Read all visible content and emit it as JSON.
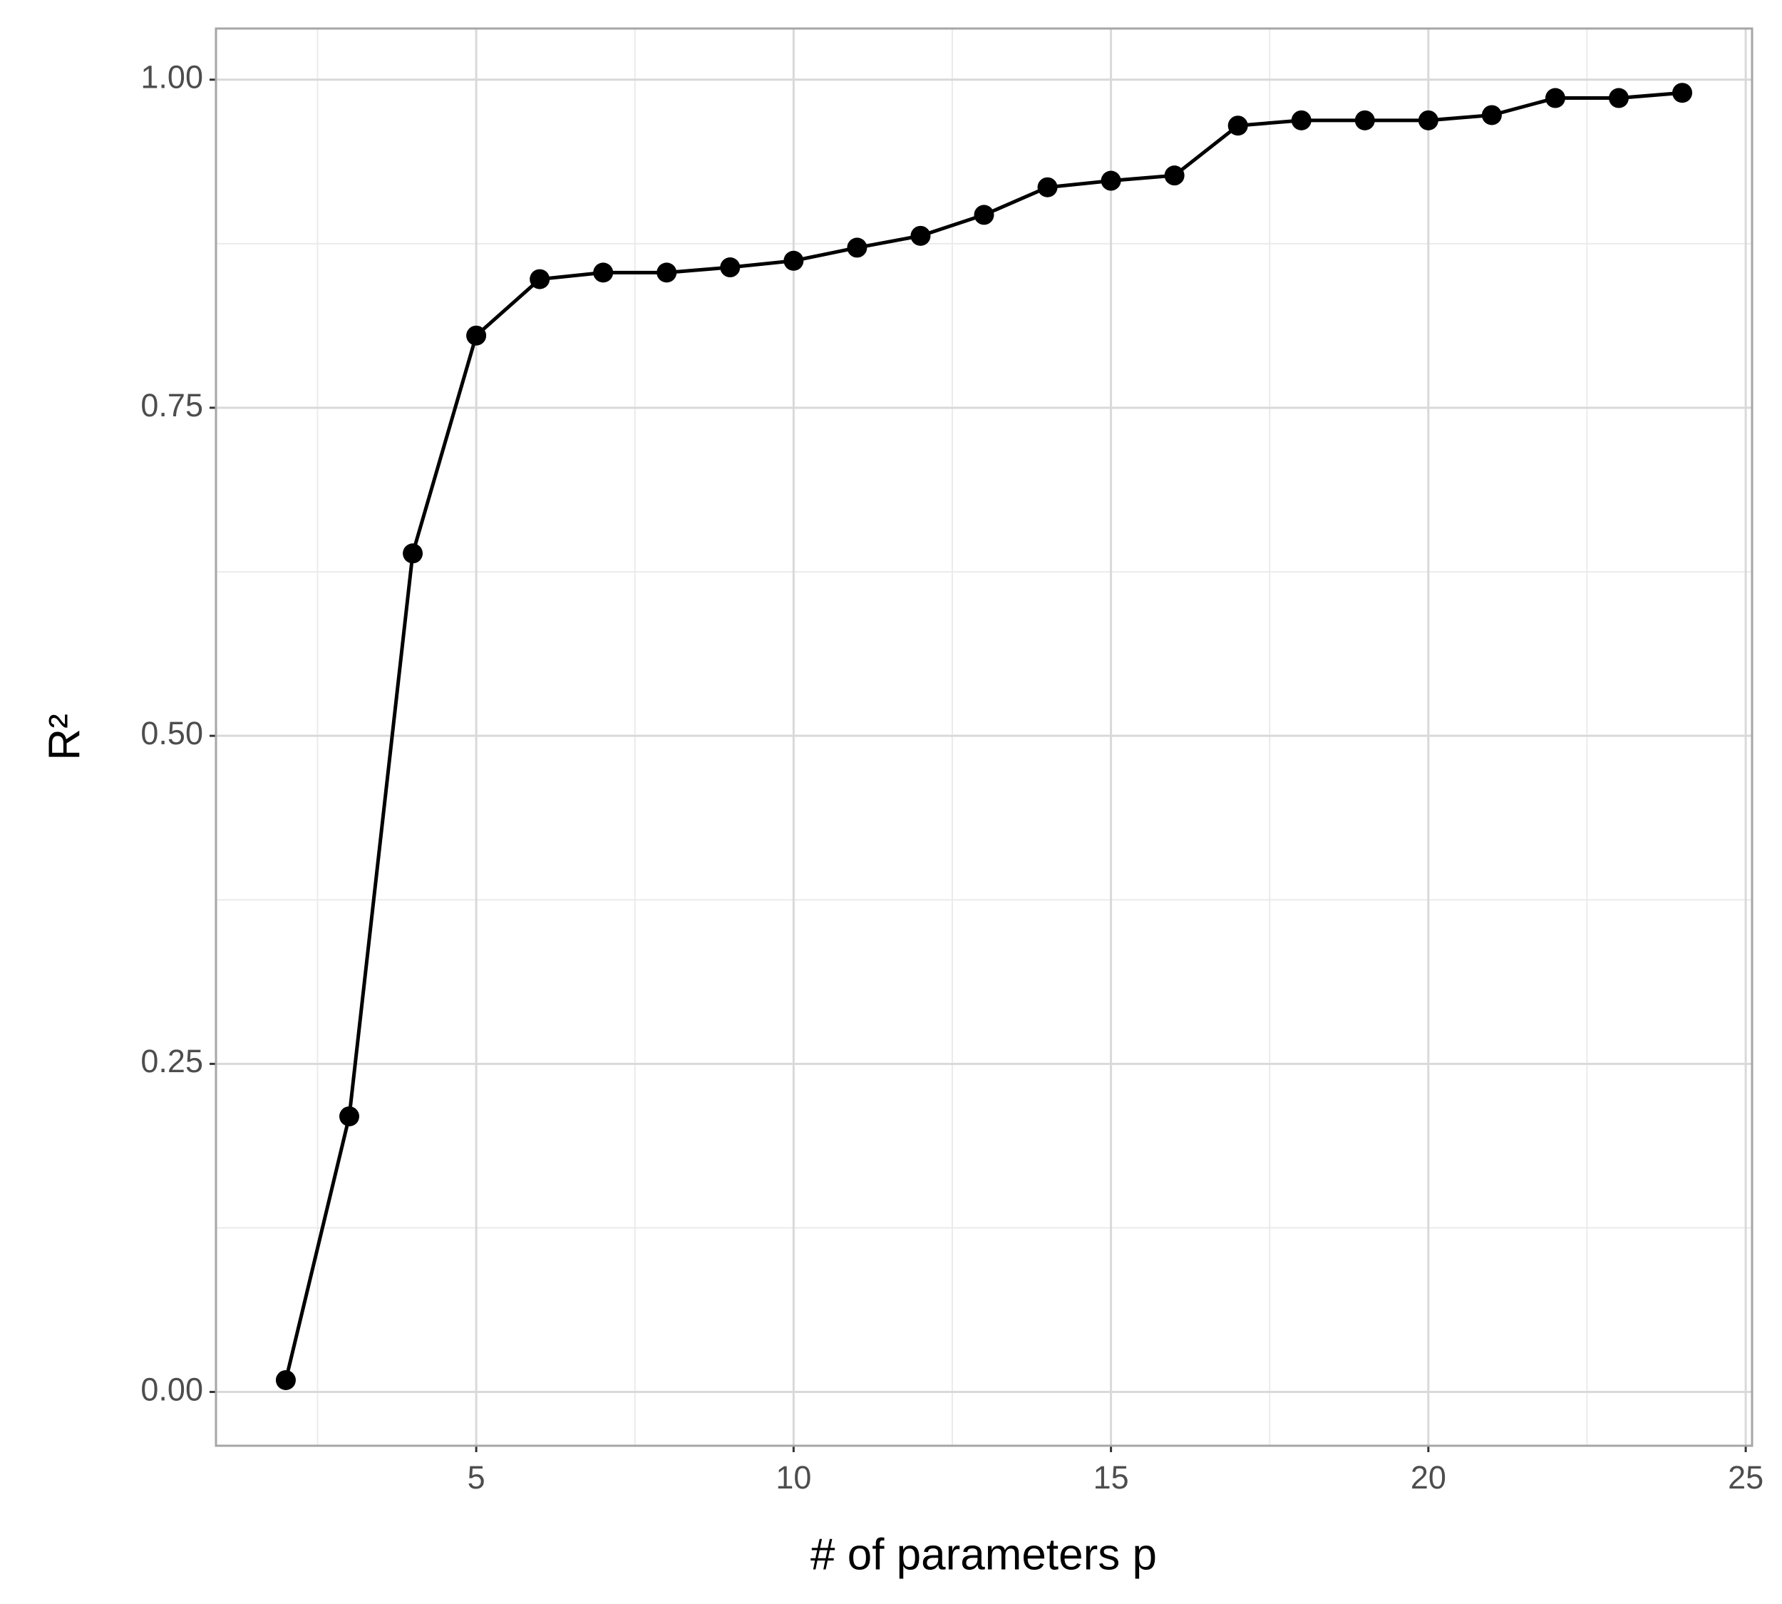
{
  "chart_data": {
    "type": "line",
    "x_label": "# of parameters p",
    "y_label": "R²",
    "x": [
      2,
      3,
      4,
      5,
      6,
      7,
      8,
      9,
      10,
      11,
      12,
      13,
      14,
      15,
      16,
      17,
      18,
      19,
      20,
      21,
      22,
      23,
      24
    ],
    "series": [
      {
        "color": "#000000",
        "values": [
          0.009,
          0.21,
          0.639,
          0.805,
          0.848,
          0.853,
          0.853,
          0.857,
          0.862,
          0.872,
          0.881,
          0.897,
          0.918,
          0.923,
          0.927,
          0.965,
          0.969,
          0.969,
          0.969,
          0.973,
          0.986,
          0.986,
          0.99
        ]
      }
    ],
    "xlim": [
      0.9,
      25.1
    ],
    "xticks": [
      5,
      10,
      15,
      20,
      25
    ],
    "ylim": [
      -0.041,
      1.039
    ],
    "yticks": [
      {
        "value": 0,
        "label": "0.00"
      },
      {
        "value": 0.25,
        "label": "0.25"
      },
      {
        "value": 0.5,
        "label": "0.50"
      },
      {
        "value": 0.75,
        "label": "0.75"
      },
      {
        "value": 1,
        "label": "1.00"
      }
    ],
    "grid": true
  }
}
